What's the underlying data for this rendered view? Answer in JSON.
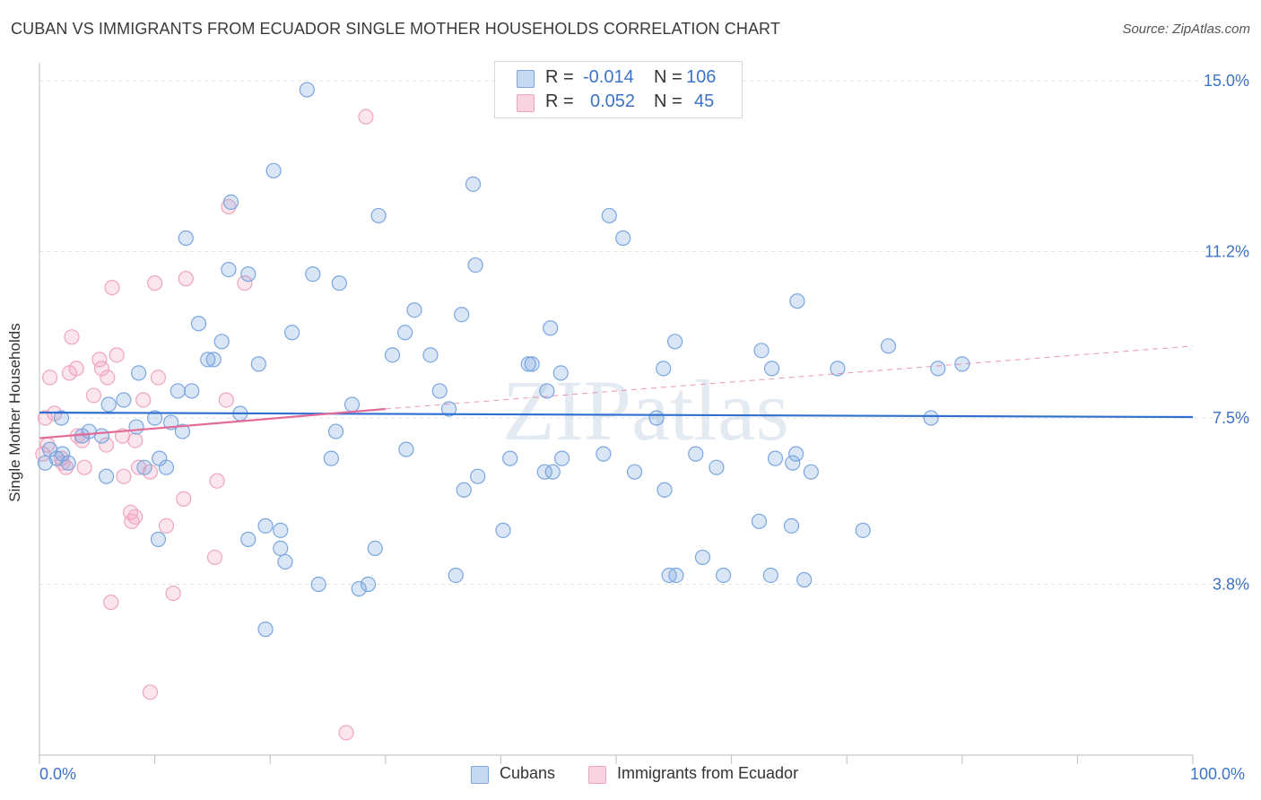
{
  "title": "CUBAN VS IMMIGRANTS FROM ECUADOR SINGLE MOTHER HOUSEHOLDS CORRELATION CHART",
  "source": "Source: ZipAtlas.com",
  "watermark": "ZIPatlas",
  "legend_top": {
    "rows": [
      {
        "r_label": "R =",
        "r_value": "-0.014",
        "n_label": "N =",
        "n_value": "106",
        "color": "#7aa6e0"
      },
      {
        "r_label": "R =",
        "r_value": "0.052",
        "n_label": "N =",
        "n_value": "45",
        "color": "#f0a4bf"
      }
    ]
  },
  "legend_bottom": {
    "items": [
      {
        "label": "Cubans",
        "color": "#7aa6e0"
      },
      {
        "label": "Immigrants from Ecuador",
        "color": "#f0a4bf"
      }
    ]
  },
  "chart_data": {
    "type": "scatter",
    "title": "CUBAN VS IMMIGRANTS FROM ECUADOR SINGLE MOTHER HOUSEHOLDS CORRELATION CHART",
    "xlabel": "",
    "ylabel": "Single Mother Households",
    "xlim": [
      0,
      100
    ],
    "ylim": [
      0,
      15.4
    ],
    "x_tick_labels": [
      "0.0%",
      "100.0%"
    ],
    "y_ticks": [
      3.8,
      7.5,
      11.2,
      15.0
    ],
    "y_tick_labels": [
      "3.8%",
      "7.5%",
      "11.2%",
      "15.0%"
    ],
    "grid": true,
    "legend_position": "top-center",
    "series": [
      {
        "name": "Cubans",
        "color": "#7aa6e0",
        "line_color": "#2e6fd0",
        "trend": {
          "x": [
            0,
            100
          ],
          "y": [
            7.62,
            7.52
          ],
          "dashed_from": null
        },
        "points": [
          [
            23.2,
            14.8
          ],
          [
            20.3,
            13.0
          ],
          [
            37.6,
            12.7
          ],
          [
            16.6,
            12.3
          ],
          [
            29.4,
            12.0
          ],
          [
            49.4,
            12.0
          ],
          [
            12.7,
            11.5
          ],
          [
            50.6,
            11.5
          ],
          [
            37.8,
            10.9
          ],
          [
            16.4,
            10.8
          ],
          [
            18.1,
            10.7
          ],
          [
            23.7,
            10.7
          ],
          [
            26.0,
            10.5
          ],
          [
            65.7,
            10.1
          ],
          [
            32.5,
            9.9
          ],
          [
            36.6,
            9.8
          ],
          [
            13.8,
            9.6
          ],
          [
            44.3,
            9.5
          ],
          [
            21.9,
            9.4
          ],
          [
            31.7,
            9.4
          ],
          [
            15.8,
            9.2
          ],
          [
            55.1,
            9.2
          ],
          [
            73.6,
            9.1
          ],
          [
            62.6,
            9.0
          ],
          [
            30.6,
            8.9
          ],
          [
            33.9,
            8.9
          ],
          [
            15.1,
            8.8
          ],
          [
            14.6,
            8.8
          ],
          [
            19.0,
            8.7
          ],
          [
            42.4,
            8.7
          ],
          [
            42.7,
            8.7
          ],
          [
            80.0,
            8.7
          ],
          [
            8.6,
            8.5
          ],
          [
            45.2,
            8.5
          ],
          [
            54.1,
            8.6
          ],
          [
            63.5,
            8.6
          ],
          [
            69.2,
            8.6
          ],
          [
            77.9,
            8.6
          ],
          [
            12.0,
            8.1
          ],
          [
            13.2,
            8.1
          ],
          [
            34.7,
            8.1
          ],
          [
            44.0,
            8.1
          ],
          [
            6.0,
            7.8
          ],
          [
            7.3,
            7.9
          ],
          [
            27.1,
            7.8
          ],
          [
            35.5,
            7.7
          ],
          [
            17.4,
            7.6
          ],
          [
            1.9,
            7.5
          ],
          [
            10.0,
            7.5
          ],
          [
            11.4,
            7.4
          ],
          [
            53.5,
            7.5
          ],
          [
            77.3,
            7.5
          ],
          [
            3.7,
            7.1
          ],
          [
            4.3,
            7.2
          ],
          [
            5.4,
            7.1
          ],
          [
            8.4,
            7.3
          ],
          [
            12.4,
            7.2
          ],
          [
            25.7,
            7.2
          ],
          [
            0.9,
            6.8
          ],
          [
            1.5,
            6.6
          ],
          [
            2.0,
            6.7
          ],
          [
            2.5,
            6.5
          ],
          [
            0.5,
            6.5
          ],
          [
            10.4,
            6.6
          ],
          [
            11.0,
            6.4
          ],
          [
            25.3,
            6.6
          ],
          [
            31.8,
            6.8
          ],
          [
            40.8,
            6.6
          ],
          [
            45.3,
            6.6
          ],
          [
            48.9,
            6.7
          ],
          [
            56.9,
            6.7
          ],
          [
            63.8,
            6.6
          ],
          [
            65.6,
            6.7
          ],
          [
            5.8,
            6.2
          ],
          [
            9.1,
            6.4
          ],
          [
            38.0,
            6.2
          ],
          [
            43.8,
            6.3
          ],
          [
            44.5,
            6.3
          ],
          [
            51.6,
            6.3
          ],
          [
            58.7,
            6.4
          ],
          [
            65.3,
            6.5
          ],
          [
            66.9,
            6.3
          ],
          [
            36.8,
            5.9
          ],
          [
            54.2,
            5.9
          ],
          [
            19.6,
            5.1
          ],
          [
            20.9,
            5.0
          ],
          [
            62.4,
            5.2
          ],
          [
            65.2,
            5.1
          ],
          [
            71.4,
            5.0
          ],
          [
            18.1,
            4.8
          ],
          [
            10.3,
            4.8
          ],
          [
            20.9,
            4.6
          ],
          [
            29.1,
            4.6
          ],
          [
            21.3,
            4.3
          ],
          [
            57.5,
            4.4
          ],
          [
            36.1,
            4.0
          ],
          [
            55.2,
            4.0
          ],
          [
            59.3,
            4.0
          ],
          [
            63.4,
            4.0
          ],
          [
            24.2,
            3.8
          ],
          [
            28.5,
            3.8
          ],
          [
            27.7,
            3.7
          ],
          [
            19.6,
            2.8
          ],
          [
            66.3,
            3.9
          ],
          [
            54.6,
            4.0
          ],
          [
            40.2,
            5.0
          ]
        ]
      },
      {
        "name": "Immigrants from Ecuador",
        "color": "#f0a4bf",
        "line_color": "#e26b99",
        "trend": {
          "x": [
            0,
            30
          ],
          "y": [
            7.05,
            7.7
          ],
          "dash_x": [
            30,
            100
          ],
          "dash_y": [
            7.7,
            9.1
          ]
        },
        "points": [
          [
            28.3,
            14.2
          ],
          [
            16.4,
            12.2
          ],
          [
            10.0,
            10.5
          ],
          [
            12.7,
            10.6
          ],
          [
            17.8,
            10.5
          ],
          [
            6.3,
            10.4
          ],
          [
            2.8,
            9.3
          ],
          [
            6.7,
            8.9
          ],
          [
            5.2,
            8.8
          ],
          [
            3.2,
            8.6
          ],
          [
            2.6,
            8.5
          ],
          [
            5.4,
            8.6
          ],
          [
            0.9,
            8.4
          ],
          [
            10.3,
            8.4
          ],
          [
            5.9,
            8.4
          ],
          [
            4.7,
            8.0
          ],
          [
            9.0,
            7.9
          ],
          [
            16.2,
            7.9
          ],
          [
            1.3,
            7.6
          ],
          [
            0.5,
            7.5
          ],
          [
            3.3,
            7.1
          ],
          [
            3.7,
            7.0
          ],
          [
            7.2,
            7.1
          ],
          [
            8.3,
            7.0
          ],
          [
            5.8,
            6.9
          ],
          [
            0.7,
            6.9
          ],
          [
            0.3,
            6.7
          ],
          [
            1.9,
            6.6
          ],
          [
            2.3,
            6.4
          ],
          [
            3.9,
            6.4
          ],
          [
            7.3,
            6.2
          ],
          [
            8.6,
            6.4
          ],
          [
            9.6,
            6.3
          ],
          [
            15.4,
            6.1
          ],
          [
            12.5,
            5.7
          ],
          [
            7.9,
            5.4
          ],
          [
            8.3,
            5.3
          ],
          [
            8.0,
            5.2
          ],
          [
            11.0,
            5.1
          ],
          [
            15.2,
            4.4
          ],
          [
            11.6,
            3.6
          ],
          [
            6.2,
            3.4
          ],
          [
            9.6,
            1.4
          ],
          [
            26.6,
            0.5
          ],
          [
            2.0,
            6.5
          ]
        ]
      }
    ]
  }
}
